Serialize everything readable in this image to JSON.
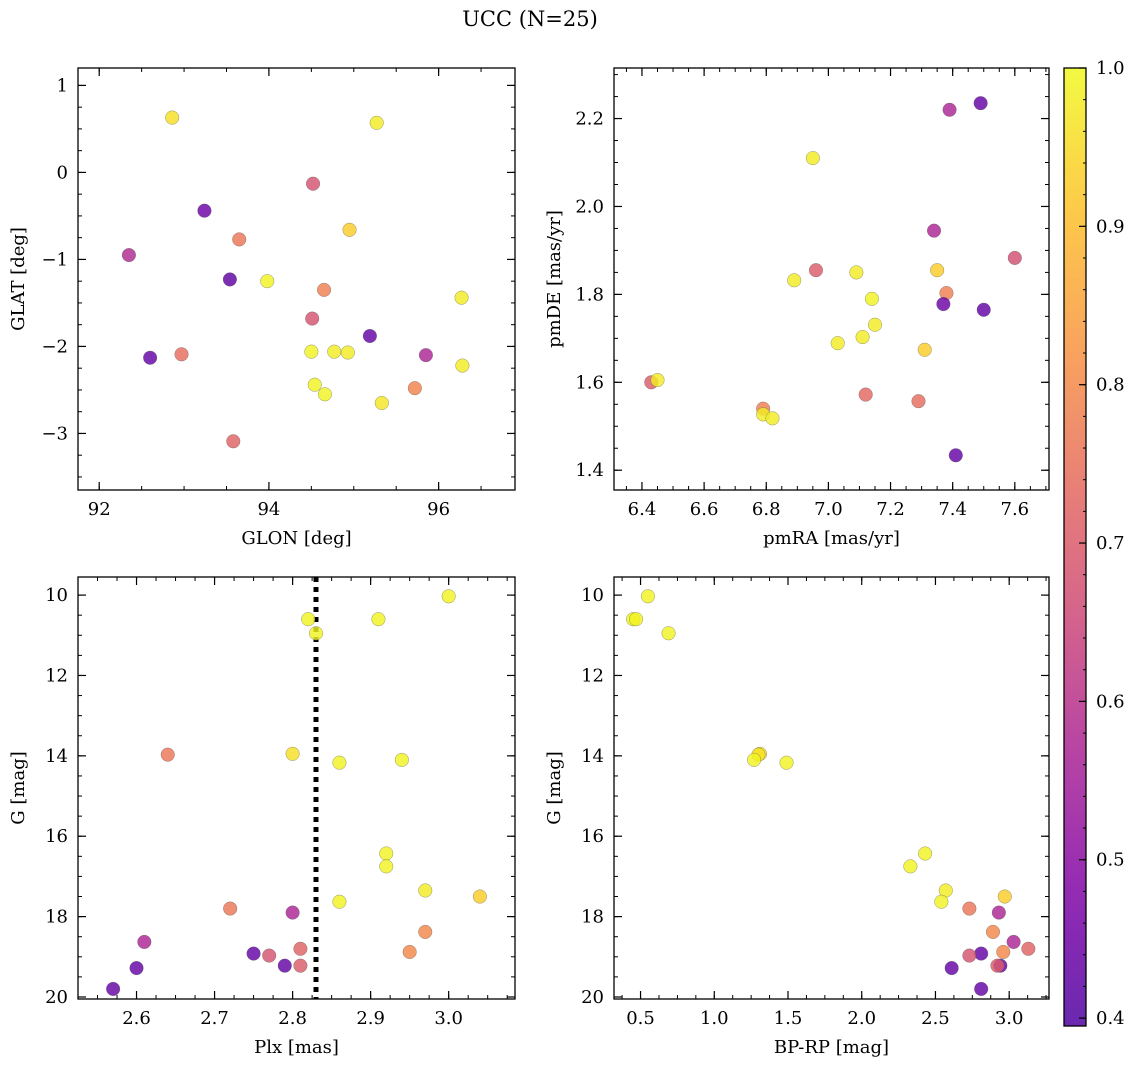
{
  "figure": {
    "suptitle": "UCC (N=25)"
  },
  "chart_data": [
    {
      "type": "scatter",
      "panel": "top-left",
      "xlabel": "GLON [deg]",
      "ylabel": "GLAT [deg]",
      "xlim": [
        91.75,
        96.9
      ],
      "ylim": [
        -3.65,
        1.2
      ],
      "xticks": [
        92,
        94,
        96
      ],
      "xtick_labels": [
        "92",
        "94",
        "96"
      ],
      "yticks": [
        1,
        0,
        -1,
        -2,
        -3
      ],
      "ytick_labels": [
        "1",
        "0",
        "−1",
        "−2",
        "−3"
      ],
      "points": [
        {
          "x": 92.86,
          "y": 0.63,
          "c": 0.96
        },
        {
          "x": 95.27,
          "y": 0.57,
          "c": 0.98
        },
        {
          "x": 94.52,
          "y": -0.13,
          "c": 0.68
        },
        {
          "x": 93.24,
          "y": -0.44,
          "c": 0.44
        },
        {
          "x": 94.95,
          "y": -0.66,
          "c": 0.93
        },
        {
          "x": 93.65,
          "y": -0.77,
          "c": 0.76
        },
        {
          "x": 92.35,
          "y": -0.95,
          "c": 0.58
        },
        {
          "x": 93.54,
          "y": -1.23,
          "c": 0.42
        },
        {
          "x": 93.98,
          "y": -1.25,
          "c": 0.99
        },
        {
          "x": 94.65,
          "y": -1.35,
          "c": 0.78
        },
        {
          "x": 96.27,
          "y": -1.44,
          "c": 0.98
        },
        {
          "x": 94.51,
          "y": -1.68,
          "c": 0.68
        },
        {
          "x": 95.19,
          "y": -1.88,
          "c": 0.43
        },
        {
          "x": 94.5,
          "y": -2.06,
          "c": 0.99
        },
        {
          "x": 94.77,
          "y": -2.06,
          "c": 0.98
        },
        {
          "x": 94.93,
          "y": -2.07,
          "c": 0.98
        },
        {
          "x": 92.97,
          "y": -2.09,
          "c": 0.74
        },
        {
          "x": 92.6,
          "y": -2.13,
          "c": 0.43
        },
        {
          "x": 95.85,
          "y": -2.1,
          "c": 0.57
        },
        {
          "x": 96.28,
          "y": -2.22,
          "c": 0.98
        },
        {
          "x": 94.54,
          "y": -2.44,
          "c": 0.99
        },
        {
          "x": 95.72,
          "y": -2.48,
          "c": 0.79
        },
        {
          "x": 94.66,
          "y": -2.55,
          "c": 0.99
        },
        {
          "x": 95.33,
          "y": -2.65,
          "c": 0.97
        },
        {
          "x": 93.58,
          "y": -3.09,
          "c": 0.72
        }
      ]
    },
    {
      "type": "scatter",
      "panel": "top-right",
      "xlabel": "pmRA [mas/yr]",
      "ylabel": "pmDE [mas/yr]",
      "xlim": [
        6.31,
        7.71
      ],
      "ylim": [
        1.355,
        2.315
      ],
      "xticks": [
        6.4,
        6.6,
        6.8,
        7.0,
        7.2,
        7.4,
        7.6
      ],
      "xtick_labels": [
        "6.4",
        "6.6",
        "6.8",
        "7.0",
        "7.2",
        "7.4",
        "7.6"
      ],
      "yticks": [
        2.2,
        2.0,
        1.8,
        1.6,
        1.4
      ],
      "ytick_labels": [
        "2.2",
        "2.0",
        "1.8",
        "1.6",
        "1.4"
      ],
      "points": [
        {
          "x": 7.49,
          "y": 2.235,
          "c": 0.43
        },
        {
          "x": 7.39,
          "y": 2.22,
          "c": 0.57
        },
        {
          "x": 6.95,
          "y": 2.11,
          "c": 0.98
        },
        {
          "x": 7.34,
          "y": 1.945,
          "c": 0.57
        },
        {
          "x": 7.6,
          "y": 1.883,
          "c": 0.67
        },
        {
          "x": 6.96,
          "y": 1.855,
          "c": 0.7
        },
        {
          "x": 7.35,
          "y": 1.855,
          "c": 0.93
        },
        {
          "x": 7.09,
          "y": 1.85,
          "c": 0.98
        },
        {
          "x": 6.89,
          "y": 1.832,
          "c": 0.98
        },
        {
          "x": 7.38,
          "y": 1.803,
          "c": 0.78
        },
        {
          "x": 7.14,
          "y": 1.79,
          "c": 0.99
        },
        {
          "x": 7.37,
          "y": 1.778,
          "c": 0.44
        },
        {
          "x": 7.5,
          "y": 1.765,
          "c": 0.43
        },
        {
          "x": 7.15,
          "y": 1.731,
          "c": 0.98
        },
        {
          "x": 7.11,
          "y": 1.703,
          "c": 0.98
        },
        {
          "x": 7.03,
          "y": 1.689,
          "c": 0.98
        },
        {
          "x": 7.31,
          "y": 1.674,
          "c": 0.93
        },
        {
          "x": 6.43,
          "y": 1.6,
          "c": 0.7
        },
        {
          "x": 6.45,
          "y": 1.605,
          "c": 0.98
        },
        {
          "x": 7.12,
          "y": 1.572,
          "c": 0.73
        },
        {
          "x": 7.29,
          "y": 1.557,
          "c": 0.74
        },
        {
          "x": 6.79,
          "y": 1.54,
          "c": 0.78
        },
        {
          "x": 6.79,
          "y": 1.527,
          "c": 0.98
        },
        {
          "x": 6.82,
          "y": 1.518,
          "c": 0.98
        },
        {
          "x": 7.41,
          "y": 1.434,
          "c": 0.43
        }
      ]
    },
    {
      "type": "scatter",
      "panel": "bottom-left",
      "xlabel": "Plx [mas]",
      "ylabel": "G [mag]",
      "xlim": [
        2.525,
        3.085
      ],
      "ylim": [
        20.05,
        9.55
      ],
      "y_inverted": true,
      "vline": {
        "x": 2.83,
        "style": "dotted",
        "color": "#000000"
      },
      "xticks": [
        2.6,
        2.7,
        2.8,
        2.9,
        3.0
      ],
      "xtick_labels": [
        "2.6",
        "2.7",
        "2.8",
        "2.9",
        "3.0"
      ],
      "yticks": [
        10,
        12,
        14,
        16,
        18,
        20
      ],
      "ytick_labels": [
        "10",
        "12",
        "14",
        "16",
        "18",
        "20"
      ],
      "points": [
        {
          "x": 3.0,
          "y": 10.03,
          "c": 0.99
        },
        {
          "x": 2.82,
          "y": 10.6,
          "c": 0.99
        },
        {
          "x": 2.91,
          "y": 10.6,
          "c": 0.99
        },
        {
          "x": 2.83,
          "y": 10.95,
          "c": 0.99
        },
        {
          "x": 2.64,
          "y": 13.97,
          "c": 0.76
        },
        {
          "x": 2.8,
          "y": 13.95,
          "c": 0.96
        },
        {
          "x": 2.86,
          "y": 14.17,
          "c": 0.99
        },
        {
          "x": 2.94,
          "y": 14.1,
          "c": 0.99
        },
        {
          "x": 2.92,
          "y": 16.43,
          "c": 0.99
        },
        {
          "x": 2.92,
          "y": 16.75,
          "c": 0.99
        },
        {
          "x": 2.97,
          "y": 17.35,
          "c": 0.98
        },
        {
          "x": 3.04,
          "y": 17.5,
          "c": 0.93
        },
        {
          "x": 2.86,
          "y": 17.63,
          "c": 0.99
        },
        {
          "x": 2.72,
          "y": 17.8,
          "c": 0.76
        },
        {
          "x": 2.8,
          "y": 17.9,
          "c": 0.57
        },
        {
          "x": 2.97,
          "y": 18.38,
          "c": 0.8
        },
        {
          "x": 2.61,
          "y": 18.63,
          "c": 0.57
        },
        {
          "x": 2.81,
          "y": 18.8,
          "c": 0.72
        },
        {
          "x": 2.95,
          "y": 18.88,
          "c": 0.8
        },
        {
          "x": 2.75,
          "y": 18.92,
          "c": 0.43
        },
        {
          "x": 2.77,
          "y": 18.97,
          "c": 0.68
        },
        {
          "x": 2.79,
          "y": 19.22,
          "c": 0.43
        },
        {
          "x": 2.81,
          "y": 19.22,
          "c": 0.7
        },
        {
          "x": 2.6,
          "y": 19.28,
          "c": 0.43
        },
        {
          "x": 2.57,
          "y": 19.8,
          "c": 0.43
        }
      ]
    },
    {
      "type": "scatter",
      "panel": "bottom-right",
      "xlabel": "BP-RP [mag]",
      "ylabel": "G [mag]",
      "xlim": [
        0.32,
        3.27
      ],
      "ylim": [
        20.05,
        9.55
      ],
      "y_inverted": true,
      "xticks": [
        0.5,
        1.0,
        1.5,
        2.0,
        2.5,
        3.0
      ],
      "xtick_labels": [
        "0.5",
        "1.0",
        "1.5",
        "2.0",
        "2.5",
        "3.0"
      ],
      "yticks": [
        10,
        12,
        14,
        16,
        18,
        20
      ],
      "ytick_labels": [
        "10",
        "12",
        "14",
        "16",
        "18",
        "20"
      ],
      "points": [
        {
          "x": 0.55,
          "y": 10.03,
          "c": 0.99
        },
        {
          "x": 0.45,
          "y": 10.6,
          "c": 0.99
        },
        {
          "x": 0.47,
          "y": 10.6,
          "c": 0.99
        },
        {
          "x": 0.69,
          "y": 10.95,
          "c": 0.99
        },
        {
          "x": 1.31,
          "y": 13.95,
          "c": 0.96
        },
        {
          "x": 1.3,
          "y": 13.97,
          "c": 0.96
        },
        {
          "x": 1.27,
          "y": 14.1,
          "c": 0.99
        },
        {
          "x": 1.49,
          "y": 14.17,
          "c": 0.99
        },
        {
          "x": 2.43,
          "y": 16.43,
          "c": 0.99
        },
        {
          "x": 2.33,
          "y": 16.75,
          "c": 0.99
        },
        {
          "x": 2.57,
          "y": 17.35,
          "c": 0.98
        },
        {
          "x": 2.97,
          "y": 17.5,
          "c": 0.93
        },
        {
          "x": 2.54,
          "y": 17.63,
          "c": 0.99
        },
        {
          "x": 2.73,
          "y": 17.8,
          "c": 0.76
        },
        {
          "x": 2.93,
          "y": 17.9,
          "c": 0.57
        },
        {
          "x": 2.89,
          "y": 18.38,
          "c": 0.8
        },
        {
          "x": 3.03,
          "y": 18.63,
          "c": 0.57
        },
        {
          "x": 3.13,
          "y": 18.8,
          "c": 0.72
        },
        {
          "x": 2.96,
          "y": 18.88,
          "c": 0.8
        },
        {
          "x": 2.81,
          "y": 18.92,
          "c": 0.43
        },
        {
          "x": 2.73,
          "y": 18.97,
          "c": 0.68
        },
        {
          "x": 2.94,
          "y": 19.22,
          "c": 0.43
        },
        {
          "x": 2.92,
          "y": 19.22,
          "c": 0.7
        },
        {
          "x": 2.61,
          "y": 19.28,
          "c": 0.43
        },
        {
          "x": 2.81,
          "y": 19.8,
          "c": 0.43
        }
      ]
    }
  ],
  "colorbar": {
    "colormap": "plasma",
    "range": [
      0.395,
      1.0
    ],
    "ticks": [
      1.0,
      0.9,
      0.8,
      0.7,
      0.6,
      0.5,
      0.4
    ],
    "tick_labels": [
      "1.0",
      "0.9",
      "0.8",
      "0.7",
      "0.6",
      "0.5",
      "0.4"
    ]
  }
}
